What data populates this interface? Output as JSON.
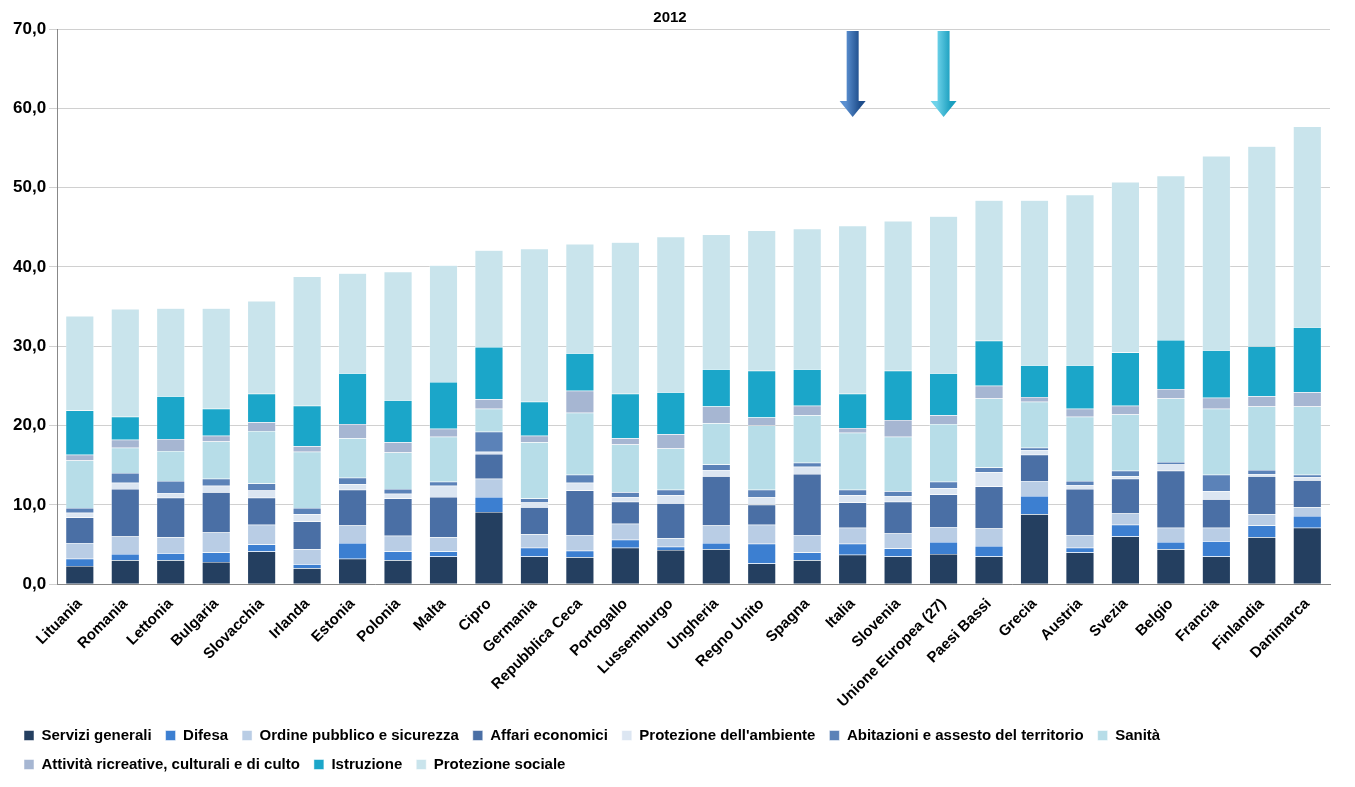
{
  "chart_data": {
    "type": "bar",
    "title": "2012",
    "stacked": true,
    "grid": true,
    "legend": "bottom",
    "categories": [
      "Lituania",
      "Romania",
      "Lettonia",
      "Bulgaria",
      "Slovacchia",
      "Irlanda",
      "Estonia",
      "Polonia",
      "Malta",
      "Cipro",
      "Germania",
      "Repubblica Ceca",
      "Portogallo",
      "Lussemburgo",
      "Ungheria",
      "Regno Unito",
      "Spagna",
      "Italia",
      "Slovenia",
      "Unione Europea (27)",
      "Paesi Bassi",
      "Grecia",
      "Austria",
      "Svezia",
      "Belgio",
      "Francia",
      "Finlandia",
      "Danimarca"
    ],
    "ylim": [
      0,
      70
    ],
    "yticks": [
      {
        "value": 0,
        "label": "0,0"
      },
      {
        "value": 10,
        "label": "10,0"
      },
      {
        "value": 20,
        "label": "20,0"
      },
      {
        "value": 30,
        "label": "30,0"
      },
      {
        "value": 40,
        "label": "40,0"
      },
      {
        "value": 50,
        "label": "50,0"
      },
      {
        "value": 60,
        "label": "60,0"
      },
      {
        "value": 70,
        "label": "70,0"
      }
    ],
    "series": [
      {
        "name": "Servizi generali",
        "color": "#243f60",
        "values": [
          2.3,
          3.0,
          3.0,
          2.8,
          4.1,
          2.0,
          3.2,
          3.0,
          3.5,
          9.1,
          3.5,
          3.4,
          4.6,
          4.3,
          4.4,
          2.6,
          3.0,
          3.7,
          3.5,
          3.8,
          3.5,
          8.8,
          4.0,
          6.0,
          4.4,
          3.5,
          5.9,
          7.1
        ]
      },
      {
        "name": "Difesa",
        "color": "#3c7fd1",
        "values": [
          0.9,
          0.8,
          0.9,
          1.2,
          0.9,
          0.5,
          2.0,
          1.1,
          0.6,
          1.9,
          1.1,
          0.8,
          1.0,
          0.4,
          0.8,
          2.5,
          1.0,
          1.4,
          1.0,
          1.5,
          1.3,
          2.3,
          0.6,
          1.5,
          0.9,
          1.9,
          1.5,
          1.5
        ]
      },
      {
        "name": "Ordine pubblico e sicurezza",
        "color": "#b9cde5",
        "values": [
          2.0,
          2.2,
          2.0,
          2.5,
          2.5,
          1.9,
          2.2,
          2.0,
          1.8,
          2.3,
          1.7,
          2.0,
          2.0,
          1.1,
          2.2,
          2.4,
          2.2,
          2.0,
          1.9,
          1.9,
          2.2,
          1.9,
          1.6,
          1.4,
          1.8,
          1.7,
          1.4,
          1.1
        ]
      },
      {
        "name": "Affari economici",
        "color": "#4a6fa5",
        "values": [
          3.2,
          6.0,
          5.0,
          5.1,
          3.4,
          3.5,
          4.5,
          4.7,
          5.1,
          3.1,
          3.4,
          5.6,
          2.8,
          4.4,
          6.2,
          2.5,
          7.7,
          3.2,
          4.0,
          4.1,
          5.3,
          3.3,
          5.8,
          4.4,
          7.2,
          3.6,
          4.8,
          3.4
        ]
      },
      {
        "name": "Protezione dell'ambiente",
        "color": "#dce6f2",
        "values": [
          0.6,
          0.8,
          0.6,
          0.8,
          0.9,
          0.9,
          0.7,
          0.6,
          1.4,
          0.3,
          0.6,
          1.0,
          0.6,
          1.0,
          0.8,
          1.0,
          0.9,
          0.9,
          0.7,
          0.8,
          1.8,
          0.6,
          0.5,
          0.3,
          0.8,
          1.0,
          0.3,
          0.4
        ]
      },
      {
        "name": "Abitazioni e assesto del territorio",
        "color": "#5b82b8",
        "values": [
          0.6,
          1.2,
          1.5,
          0.9,
          0.9,
          0.8,
          0.8,
          0.6,
          0.5,
          2.5,
          0.5,
          1.0,
          0.6,
          0.7,
          0.7,
          0.9,
          0.5,
          0.7,
          0.6,
          0.8,
          0.6,
          0.3,
          0.5,
          0.7,
          0.3,
          2.1,
          0.5,
          0.3
        ]
      },
      {
        "name": "Sanità",
        "color": "#b7dde8",
        "values": [
          6.0,
          3.2,
          3.8,
          4.7,
          6.6,
          7.1,
          5.0,
          4.6,
          5.7,
          2.9,
          7.1,
          7.8,
          6.0,
          5.2,
          5.2,
          8.1,
          6.0,
          7.2,
          6.9,
          7.3,
          8.7,
          5.8,
          8.1,
          7.1,
          8.0,
          8.3,
          8.0,
          8.6
        ]
      },
      {
        "name": "Attività ricreative, culturali e di culto",
        "color": "#a6b6d2",
        "values": [
          0.7,
          1.0,
          1.5,
          0.7,
          1.1,
          0.7,
          1.8,
          1.3,
          1.0,
          1.2,
          0.8,
          2.8,
          0.8,
          1.8,
          2.1,
          1.0,
          1.2,
          0.6,
          2.1,
          1.1,
          1.6,
          0.6,
          1.0,
          1.1,
          1.2,
          1.4,
          1.3,
          1.8
        ]
      },
      {
        "name": "Istruzione",
        "color": "#1ba6c9",
        "values": [
          5.6,
          2.9,
          5.4,
          3.4,
          3.6,
          5.1,
          6.4,
          5.3,
          5.9,
          6.6,
          4.3,
          4.7,
          5.6,
          5.3,
          4.7,
          5.9,
          4.6,
          4.3,
          6.2,
          5.3,
          5.7,
          4.0,
          5.5,
          6.7,
          6.2,
          6.0,
          6.3,
          8.2
        ]
      },
      {
        "name": "Protezione sociale",
        "color": "#c9e4ec",
        "values": [
          11.9,
          13.6,
          11.1,
          12.7,
          11.7,
          16.3,
          12.6,
          16.2,
          14.7,
          12.2,
          19.3,
          13.8,
          19.1,
          19.6,
          17.0,
          17.7,
          17.7,
          21.2,
          18.9,
          19.8,
          17.7,
          20.8,
          21.5,
          21.5,
          20.7,
          24.5,
          25.2,
          25.3
        ]
      }
    ]
  }
}
